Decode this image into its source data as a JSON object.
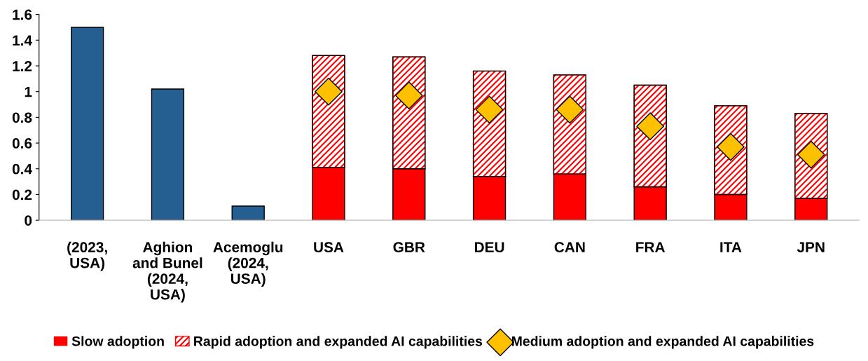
{
  "chart_data": {
    "type": "bar",
    "stacked": true,
    "categories": [
      "(2023,\nUSA)",
      "Aghion\nand Bunel\n(2024,\nUSA)",
      "Acemoglu\n(2024,\nUSA)",
      "USA",
      "GBR",
      "DEU",
      "CAN",
      "FRA",
      "ITA",
      "JPN"
    ],
    "series": [
      {
        "color": "#255e91",
        "values": [
          1.5,
          1.02,
          0.11,
          null,
          null,
          null,
          null,
          null,
          null,
          null
        ]
      },
      {
        "name": "Slow adoption",
        "color": "#ff0000",
        "values": [
          null,
          null,
          null,
          0.41,
          0.4,
          0.34,
          0.36,
          0.26,
          0.2,
          0.17
        ]
      },
      {
        "name": "Rapid adoption and expanded AI capabilities",
        "color": "#ff0000",
        "values": [
          null,
          null,
          null,
          0.87,
          0.87,
          0.82,
          0.77,
          0.79,
          0.69,
          0.66
        ]
      },
      {
        "name": "Medium adoption and expanded AI capabilities",
        "type": "scatter",
        "marker": "diamond",
        "color": "#ffc000",
        "values": [
          null,
          null,
          null,
          1.0,
          0.97,
          0.86,
          0.86,
          0.73,
          0.57,
          0.51
        ]
      }
    ],
    "ylim": [
      0,
      1.6
    ],
    "yticks": [
      0,
      0.2,
      0.4,
      0.6,
      0.8,
      1,
      1.2,
      1.4,
      1.6
    ],
    "grid": false,
    "legend": "bottom"
  }
}
